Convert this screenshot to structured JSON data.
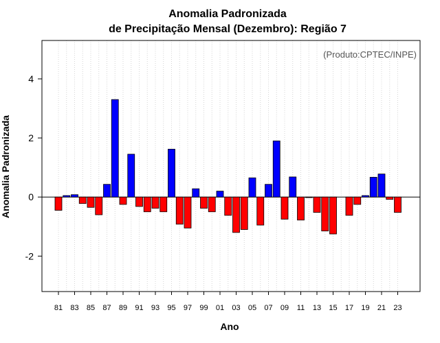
{
  "chart_data": {
    "type": "bar",
    "title": "Anomalia Padronizada",
    "subtitle": "de Precipitação Mensal (Dezembro): Região 7",
    "xlabel": "Ano",
    "ylabel": "Anomalia Padronizada",
    "credit": "(Produto:CPTEC/INPE)",
    "ylim": [
      -3.2,
      5.3
    ],
    "yticks": [
      -2,
      0,
      2,
      4
    ],
    "grid": "vertical dotted lines at each year",
    "colors": {
      "positive": "#0000ff",
      "negative": "#ff0000"
    },
    "categories": [
      "81",
      "82",
      "83",
      "84",
      "85",
      "86",
      "87",
      "88",
      "89",
      "90",
      "91",
      "92",
      "93",
      "94",
      "95",
      "96",
      "97",
      "98",
      "99",
      "00",
      "01",
      "02",
      "03",
      "04",
      "05",
      "06",
      "07",
      "08",
      "09",
      "10",
      "11",
      "12",
      "13",
      "14",
      "15",
      "16",
      "17",
      "18",
      "19",
      "20",
      "21",
      "22",
      "23"
    ],
    "xtick_labels": [
      "81",
      "83",
      "85",
      "87",
      "89",
      "91",
      "93",
      "95",
      "97",
      "99",
      "01",
      "03",
      "05",
      "07",
      "09",
      "11",
      "13",
      "15",
      "17",
      "19",
      "21",
      "23"
    ],
    "values": [
      -0.45,
      0.05,
      0.08,
      -0.22,
      -0.35,
      -0.6,
      0.43,
      3.3,
      -0.25,
      1.45,
      -0.32,
      -0.5,
      -0.38,
      -0.5,
      1.62,
      -0.92,
      -1.05,
      0.28,
      -0.38,
      -0.5,
      0.2,
      -0.62,
      -1.2,
      -1.1,
      0.65,
      -0.95,
      0.43,
      1.9,
      -0.75,
      0.68,
      -0.78,
      -0.02,
      -0.52,
      -1.15,
      -1.25,
      0.0,
      -0.62,
      -0.25,
      0.05,
      0.67,
      0.78,
      -0.08,
      -0.52
    ]
  }
}
